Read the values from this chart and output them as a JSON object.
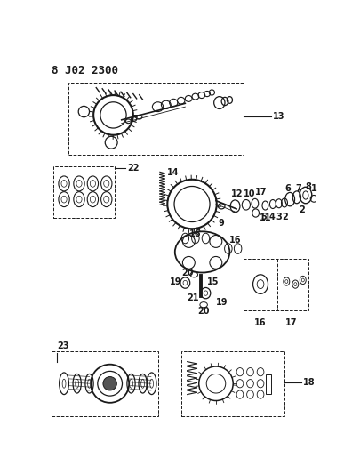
{
  "title": "8 J02 2300",
  "bg_color": "#ffffff",
  "line_color": "#1a1a1a",
  "title_fontsize": 9,
  "label_fontsize": 7,
  "fig_width": 3.96,
  "fig_height": 5.33,
  "dpi": 100
}
